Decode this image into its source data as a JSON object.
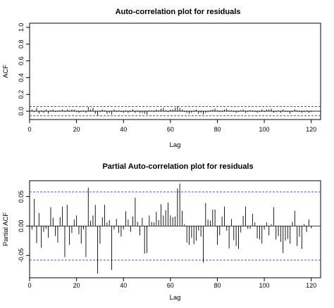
{
  "chart_data": [
    {
      "type": "bar",
      "title": "Auto-correlation plot for residuals",
      "xlabel": "Lag",
      "ylabel": "ACF",
      "xlim": [
        0,
        124
      ],
      "ylim": [
        -0.1,
        1.05
      ],
      "xticks": [
        0,
        20,
        40,
        60,
        80,
        100,
        120
      ],
      "yticks": [
        0.0,
        0.2,
        0.4,
        0.6,
        0.8,
        1.0
      ],
      "ytick_labels": [
        "0.0",
        "0.2",
        "0.4",
        "0.6",
        "0.8",
        "1.0"
      ],
      "ci": [
        0.055,
        -0.055
      ],
      "x_start": 0,
      "values": [
        1.0,
        0.02,
        -0.01,
        0.04,
        -0.03,
        0.01,
        -0.02,
        0.02,
        -0.03,
        0.01,
        0.02,
        -0.01,
        0.01,
        0.01,
        0.02,
        -0.01,
        0.02,
        0.01,
        0.02,
        0.02,
        -0.01,
        -0.02,
        -0.01,
        0.01,
        -0.02,
        0.05,
        0.02,
        0.04,
        -0.03,
        -0.05,
        -0.01,
        0.02,
        0.01,
        -0.03,
        -0.02,
        -0.04,
        0.02,
        -0.01,
        0.01,
        -0.01,
        -0.02,
        0.01,
        -0.02,
        -0.01,
        0.02,
        -0.02,
        0.01,
        -0.02,
        -0.02,
        -0.03,
        -0.04,
        0.01,
        0.01,
        -0.01,
        0.02,
        0.01,
        0.03,
        0.04,
        0.01,
        -0.01,
        0.02,
        0.02,
        0.04,
        0.06,
        0.04,
        0.02,
        -0.01,
        -0.02,
        -0.03,
        -0.02,
        -0.01,
        0.02,
        -0.03,
        -0.02,
        -0.04,
        -0.02,
        -0.01,
        0.01,
        0.02,
        0.03,
        0.01,
        -0.01,
        -0.01,
        0.02,
        0.03,
        0.01,
        0.01,
        -0.01,
        -0.02,
        -0.01,
        0.01,
        0.02,
        -0.02,
        -0.01,
        0.01,
        0.01,
        -0.01,
        -0.02,
        -0.01,
        0.02,
        -0.01,
        0.02,
        0.02,
        0.03,
        -0.02,
        -0.01,
        0.01,
        -0.02,
        0.02,
        -0.01,
        -0.01,
        -0.03,
        -0.01,
        0.02,
        0.01,
        -0.01,
        -0.02,
        -0.01,
        0.01,
        -0.02,
        -0.01
      ]
    },
    {
      "type": "bar",
      "title": "Partial Auto-correlation plot for residuals",
      "xlabel": "Lag",
      "ylabel": "Partial ACF",
      "xlim": [
        0,
        124
      ],
      "ylim": [
        -0.088,
        0.077
      ],
      "xticks": [
        0,
        20,
        40,
        60,
        80,
        100,
        120
      ],
      "yticks": [
        -0.05,
        0.0,
        0.05
      ],
      "ytick_labels": [
        "-0.05",
        "0.00",
        "0.05"
      ],
      "ci": [
        0.058,
        -0.058
      ],
      "x_start": 1,
      "values": [
        -0.006,
        0.046,
        -0.029,
        0.022,
        -0.037,
        -0.01,
        -0.005,
        -0.02,
        0.032,
        0.014,
        -0.017,
        -0.028,
        0.015,
        0.033,
        -0.053,
        0.036,
        -0.032,
        -0.012,
        0.011,
        0.018,
        -0.014,
        -0.03,
        -0.006,
        -0.053,
        0.065,
        0.009,
        0.018,
        0.036,
        -0.081,
        -0.03,
        0.015,
        0.036,
        0.006,
        0.01,
        -0.075,
        -0.006,
        0.012,
        -0.012,
        -0.018,
        -0.006,
        0.025,
        0.011,
        -0.01,
        0.016,
        0.048,
        0.007,
        -0.016,
        0.014,
        -0.047,
        -0.046,
        0.018,
        0.007,
        0.006,
        0.024,
        0.01,
        0.037,
        0.018,
        0.027,
        0.04,
        0.018,
        0.015,
        0.016,
        0.064,
        0.072,
        0.026,
        0.003,
        -0.028,
        -0.032,
        -0.02,
        -0.031,
        -0.025,
        -0.008,
        -0.018,
        -0.062,
        0.039,
        0.011,
        0.009,
        0.028,
        0.028,
        -0.032,
        -0.016,
        0.016,
        0.033,
        -0.008,
        -0.038,
        0.012,
        -0.024,
        -0.034,
        -0.039,
        -0.011,
        0.017,
        0.033,
        -0.005,
        -0.005,
        0.021,
        0.006,
        -0.021,
        -0.023,
        -0.03,
        -0.006,
        0.006,
        -0.016,
        0.003,
        0.032,
        -0.023,
        -0.017,
        -0.027,
        -0.046,
        -0.025,
        -0.022,
        -0.03,
        0.007,
        0.026,
        -0.034,
        -0.018,
        -0.039,
        0.003,
        -0.01,
        0.011,
        -0.004
      ]
    }
  ]
}
